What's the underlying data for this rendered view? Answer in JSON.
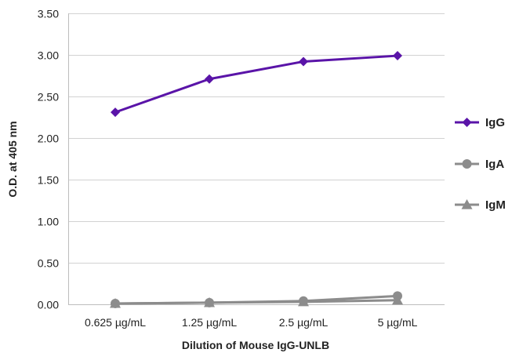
{
  "chart_data": {
    "type": "line",
    "title": "",
    "xlabel": "Dilution of Mouse IgG-UNLB",
    "ylabel": "O.D. at 405 nm",
    "categories": [
      "0.625 µg/mL",
      "1.25 µg/mL",
      "2.5 µg/mL",
      "5 µg/mL"
    ],
    "ylim": [
      0,
      3.5
    ],
    "y_ticks": [
      "0.00",
      "0.50",
      "1.00",
      "1.50",
      "2.00",
      "2.50",
      "3.00",
      "3.50"
    ],
    "grid": "horizontal",
    "legend_position": "right",
    "series": [
      {
        "name": "IgG",
        "values": [
          2.31,
          2.71,
          2.92,
          2.99
        ],
        "color": "#5a14a8",
        "marker": "diamond"
      },
      {
        "name": "IgA",
        "values": [
          0.01,
          0.02,
          0.04,
          0.1
        ],
        "color": "#8c8c8c",
        "marker": "circle"
      },
      {
        "name": "IgM",
        "values": [
          0.01,
          0.02,
          0.03,
          0.05
        ],
        "color": "#8c8c8c",
        "marker": "triangle"
      }
    ]
  }
}
